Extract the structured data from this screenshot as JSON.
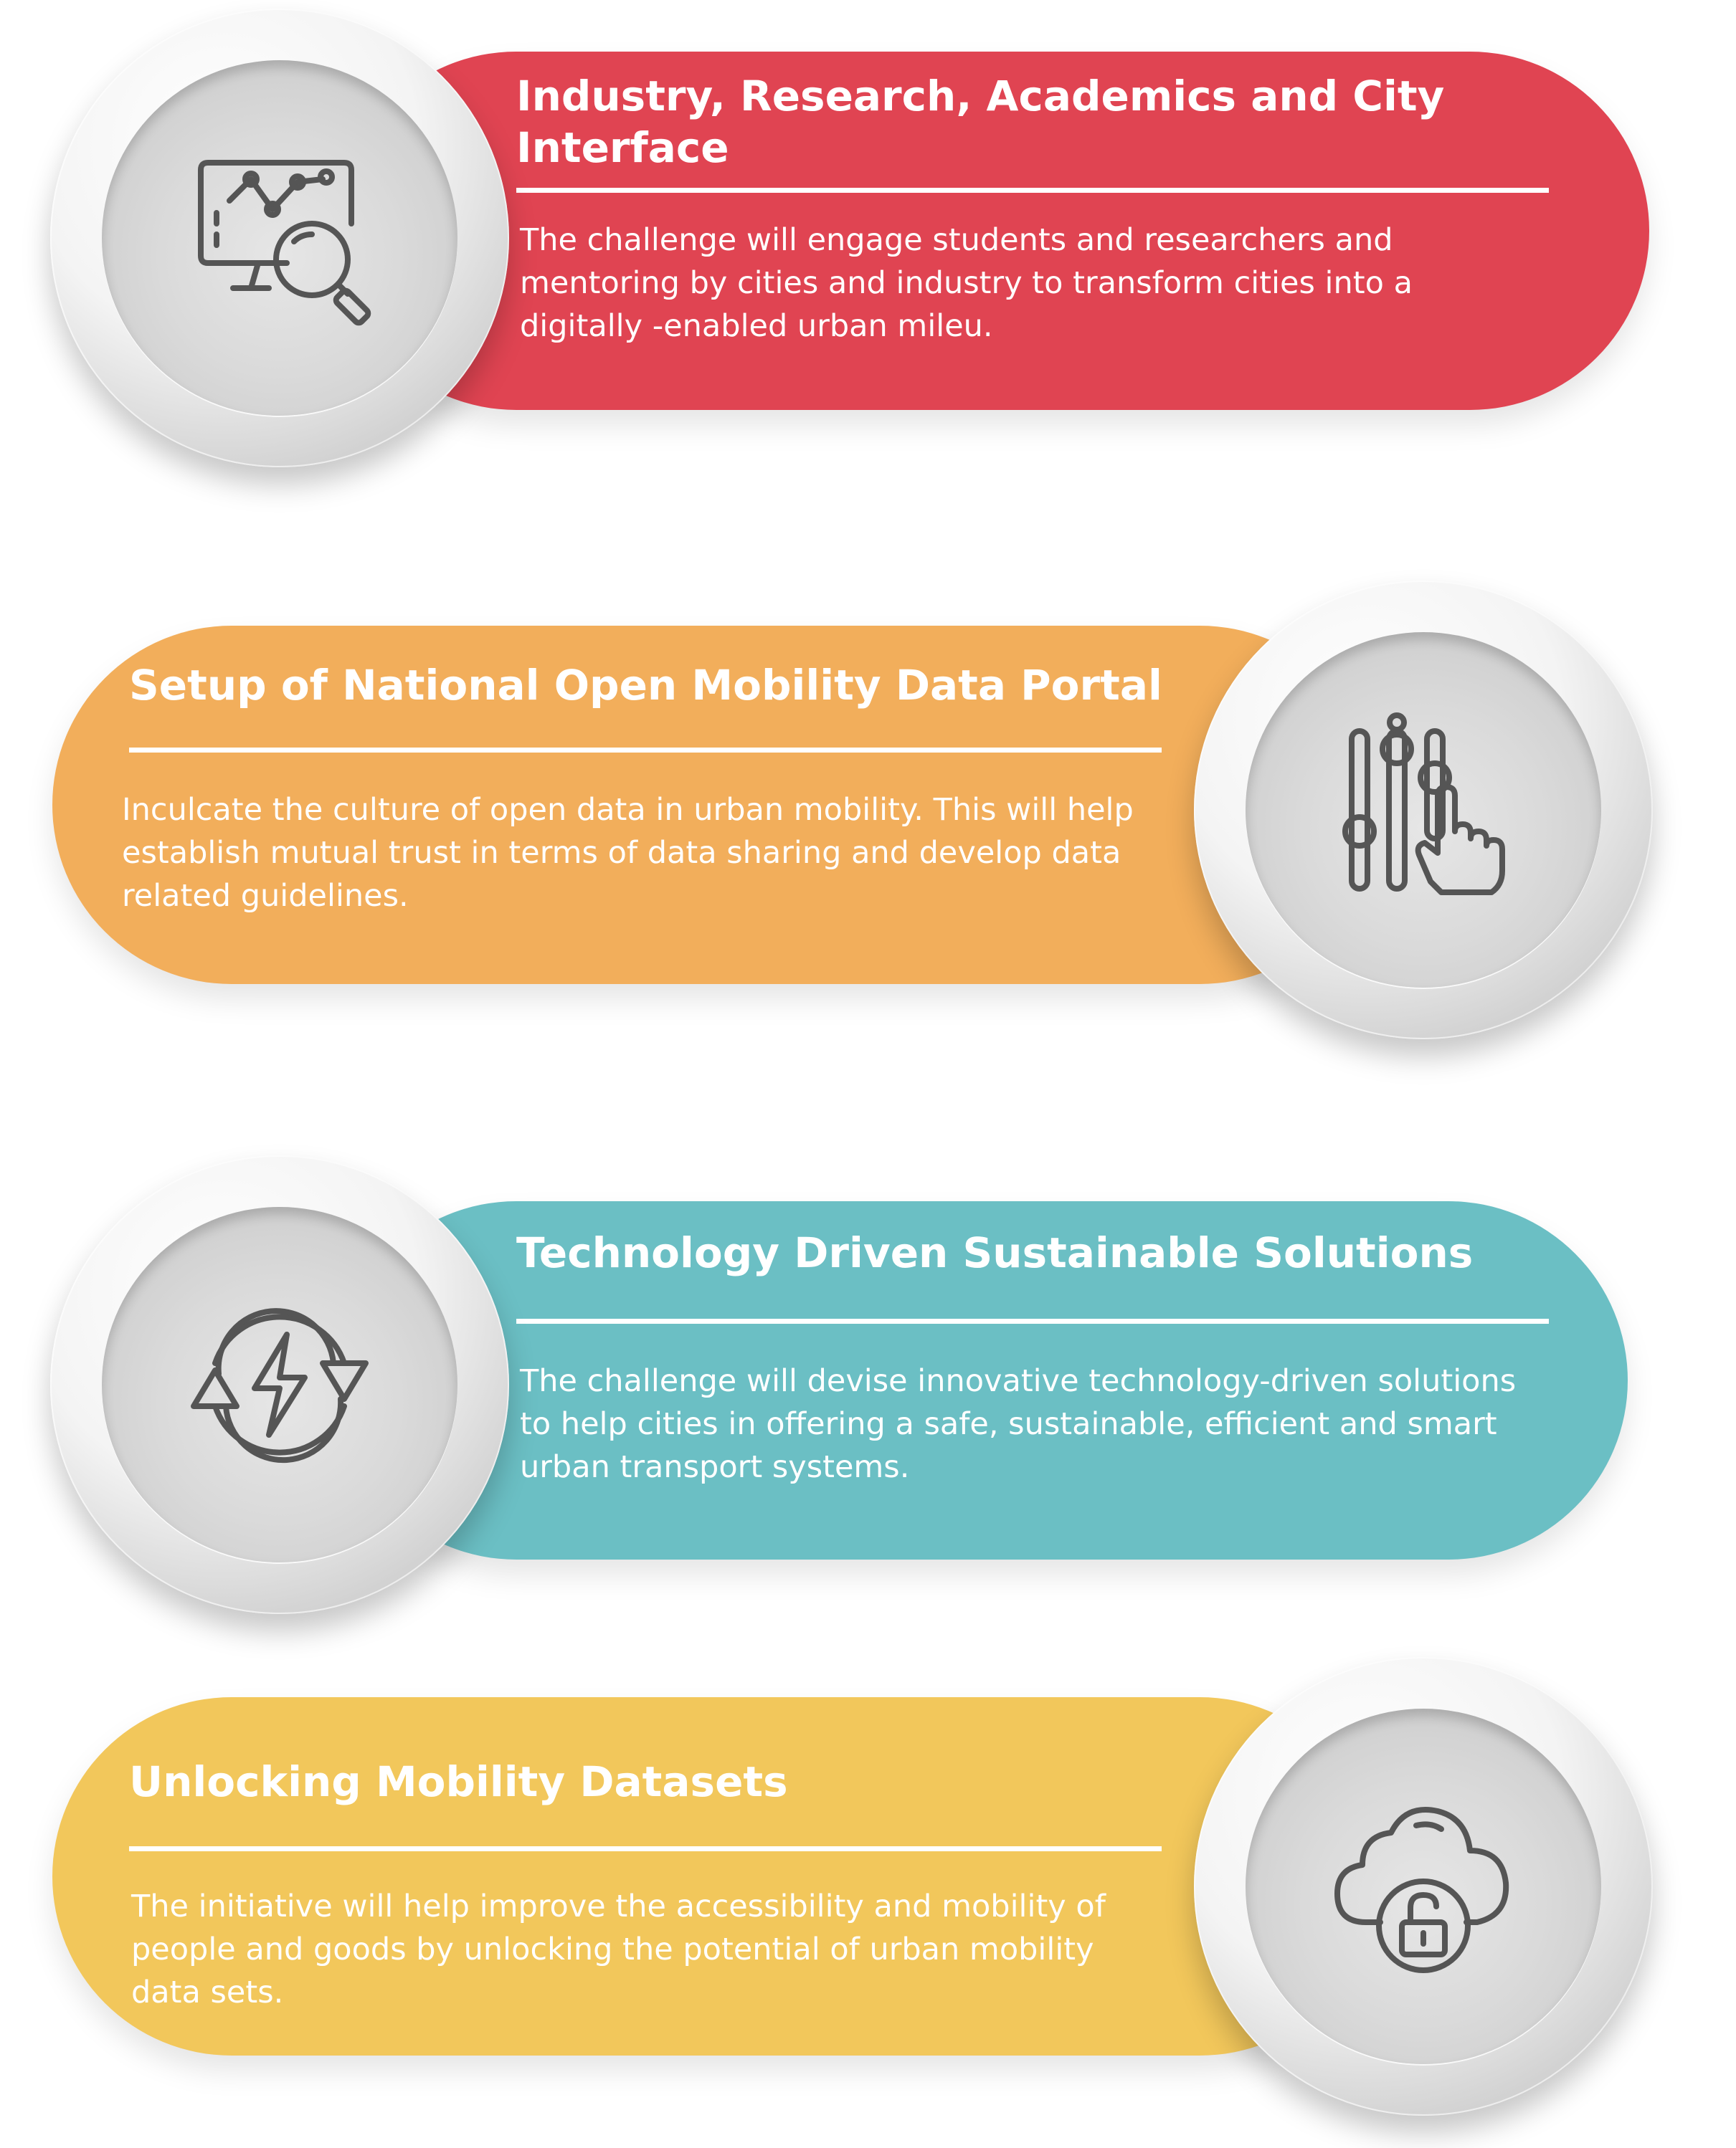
{
  "cards": [
    {
      "title": "Industry, Research, Academics and City Interface",
      "description": "The challenge will engage students and researchers and mentoring by cities and industry to transform cities into a digitally -enabled urban mileu.",
      "icon": "monitor-analytics-search-icon",
      "color": "#e04452"
    },
    {
      "title": "Setup of National Open Mobility Data Portal",
      "description": "Inculcate the culture of open data in urban mobility. This will help establish mutual trust in terms of data sharing and develop data related guidelines.",
      "icon": "sliders-hand-icon",
      "color": "#f2ae5b"
    },
    {
      "title": "Technology Driven Sustainable Solutions",
      "description": "The challenge will devise innovative technology-driven solutions to help cities in offering a safe, sustainable, efficient and smart urban transport systems.",
      "icon": "renewable-energy-icon",
      "color": "#6bbfc4"
    },
    {
      "title": "Unlocking Mobility Datasets",
      "description": "The initiative will help improve the accessibility and mobility of people and goods by unlocking the potential of urban mobility data sets.",
      "icon": "cloud-unlock-icon",
      "color": "#f2c75b"
    }
  ]
}
